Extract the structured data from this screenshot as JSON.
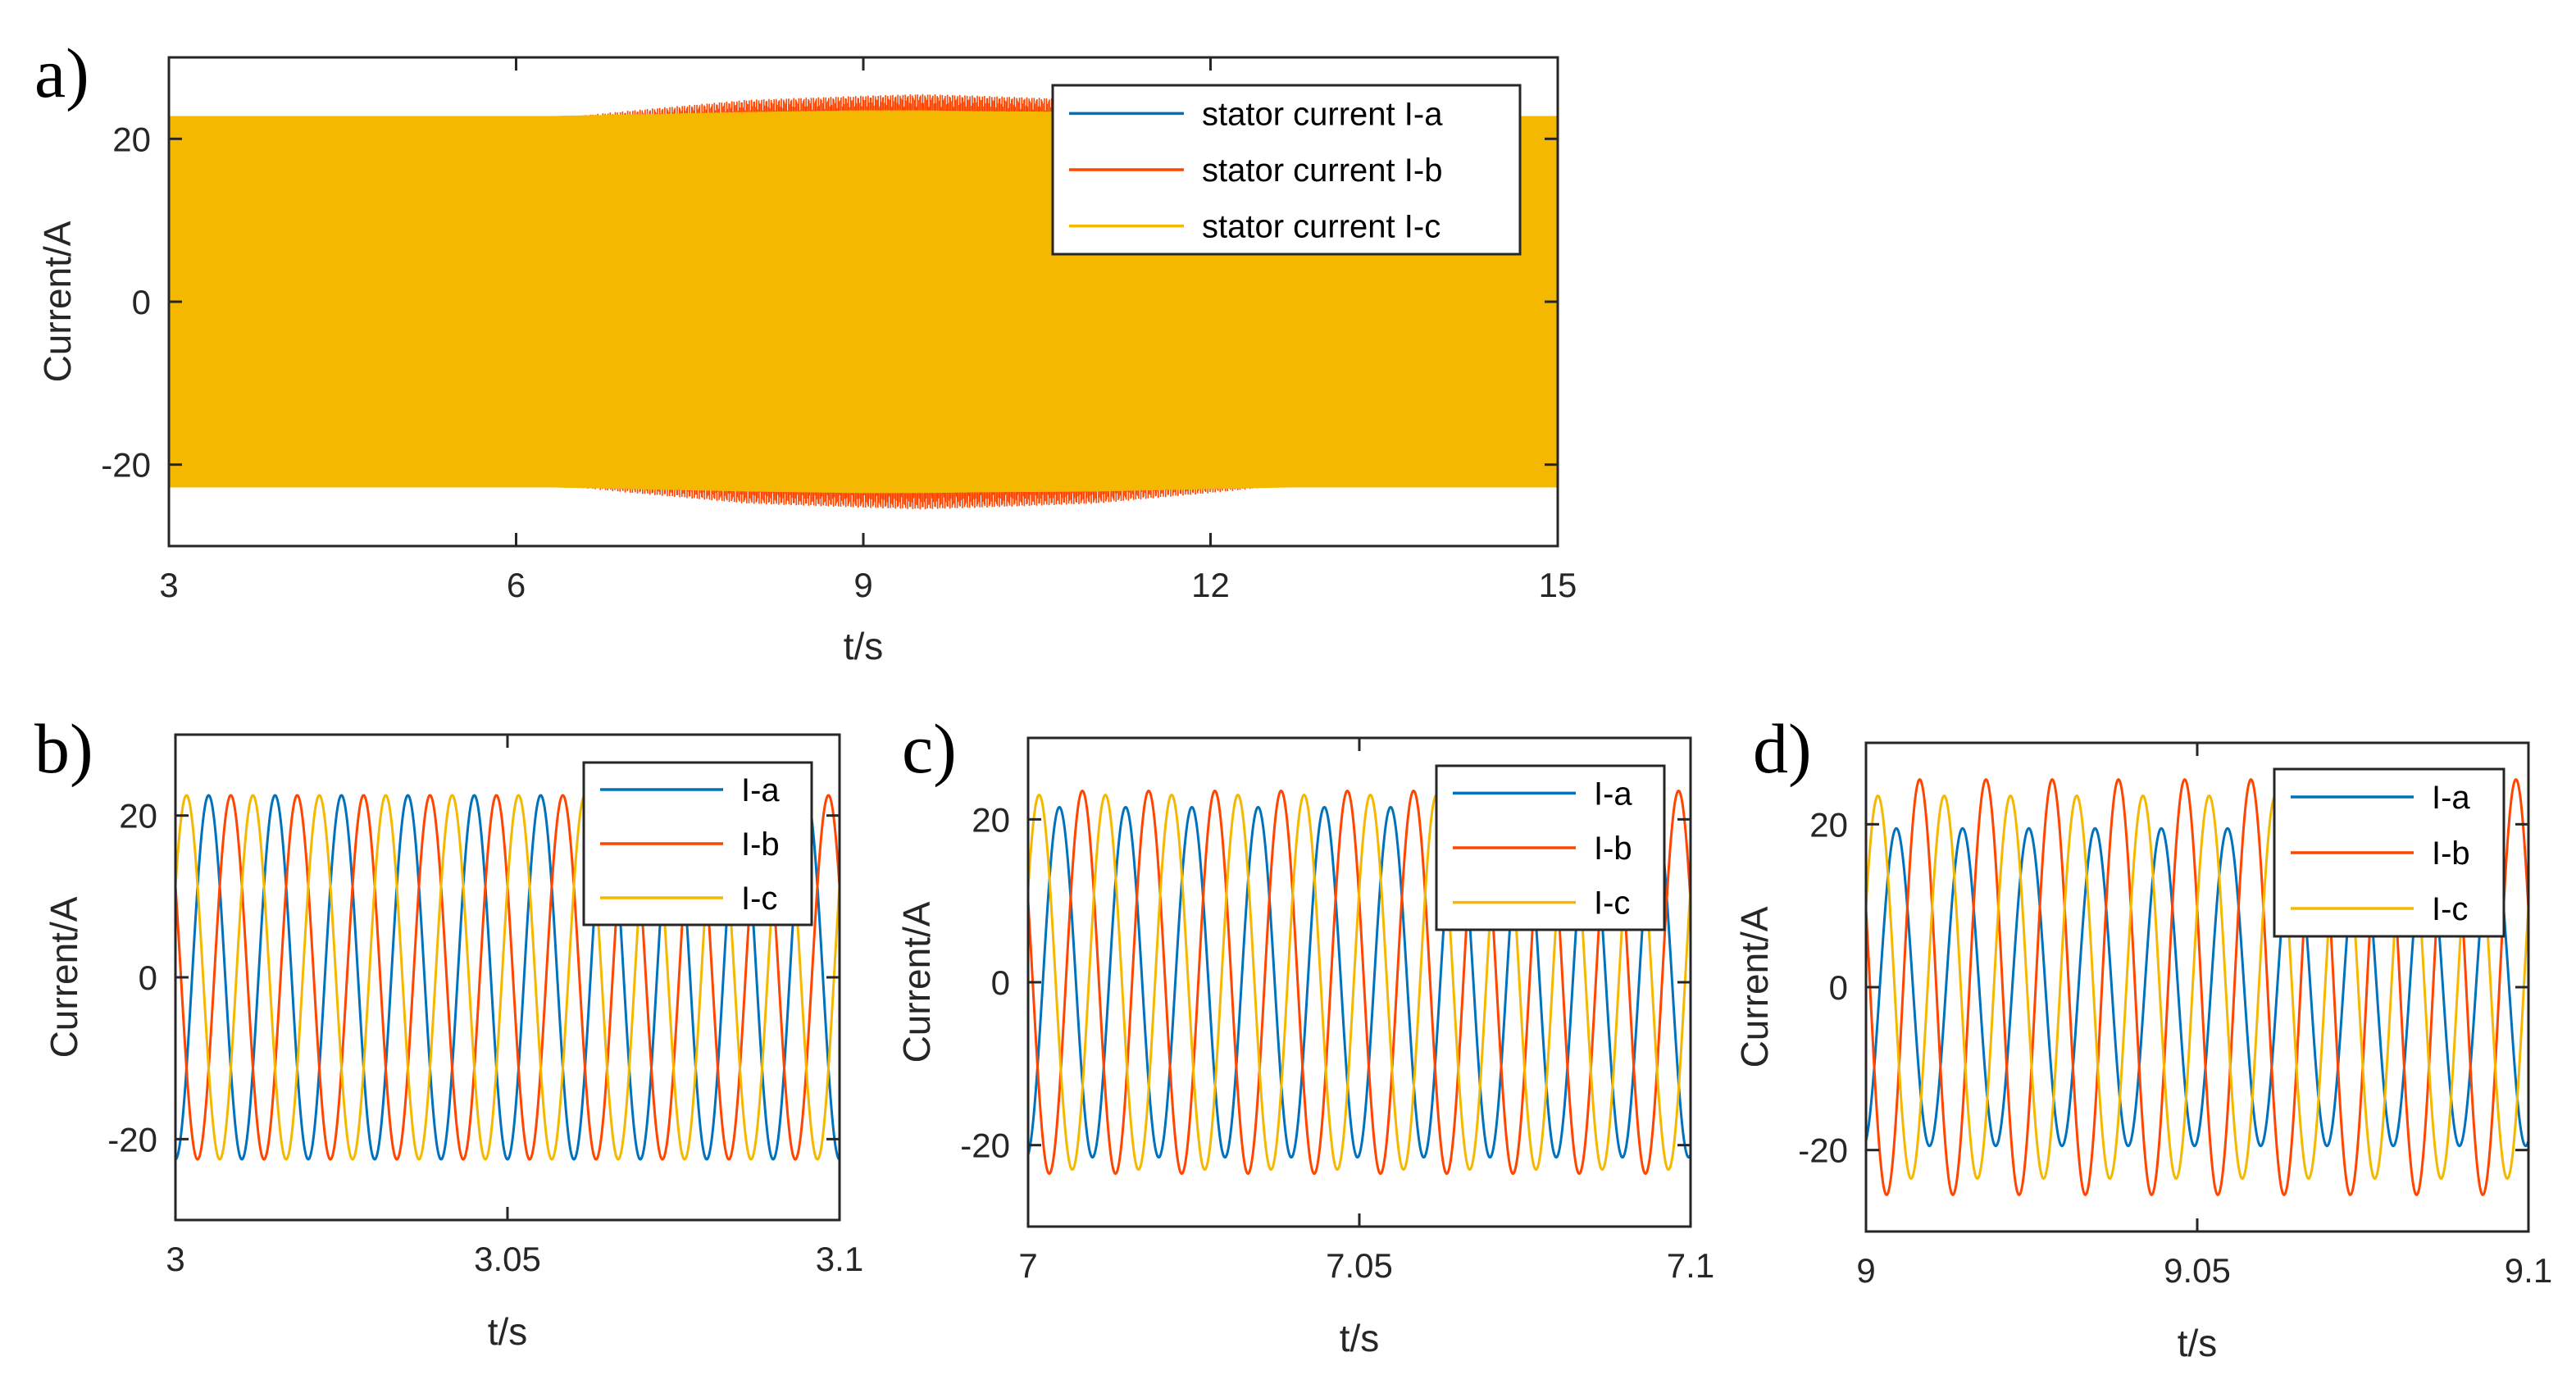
{
  "figure": {
    "panels": [
      "a)",
      "b)",
      "c)",
      "d)"
    ]
  },
  "colors": {
    "I-a": "#0072BD",
    "I-b": "#FF4500",
    "I-c": "#F5B800",
    "axes": "#262626"
  },
  "chart_data": [
    {
      "panel": "a)",
      "type": "line",
      "xlabel": "t/s",
      "ylabel": "Current/A",
      "xlim": [
        3,
        15
      ],
      "ylim": [
        -30,
        30
      ],
      "xticks": [
        3,
        6,
        9,
        12,
        15
      ],
      "xtick_labels": [
        "3",
        "6",
        "9",
        "12",
        "15"
      ],
      "yticks": [
        20,
        0,
        -20
      ],
      "ytick_labels": [
        "20",
        "0",
        "-20"
      ],
      "legend": [
        "stator current I-a",
        "stator current I-b",
        "stator current I-c"
      ],
      "legend_position": "top-right",
      "frequency_hz": 100,
      "envelope_times": [
        3,
        6,
        6.3,
        7,
        8,
        9,
        9.5,
        10,
        11,
        12,
        12.7,
        15
      ],
      "series": [
        {
          "name": "stator current I-a",
          "amplitudes": [
            22.5,
            22.5,
            22.5,
            21.5,
            20.5,
            20.0,
            19.5,
            20.0,
            20.5,
            21.5,
            22.5,
            22.5
          ]
        },
        {
          "name": "stator current I-b",
          "amplitudes": [
            22.5,
            22.5,
            22.5,
            23.5,
            24.8,
            25.3,
            25.5,
            25.3,
            24.8,
            23.5,
            22.5,
            22.5
          ]
        },
        {
          "name": "stator current I-c",
          "amplitudes": [
            22.8,
            22.8,
            22.8,
            23.0,
            23.3,
            23.5,
            23.5,
            23.4,
            23.3,
            23.0,
            22.8,
            22.8
          ]
        }
      ]
    },
    {
      "panel": "b)",
      "type": "line",
      "xlabel": "t/s",
      "ylabel": "Current/A",
      "xlim": [
        3,
        3.1
      ],
      "ylim": [
        -30,
        30
      ],
      "xticks": [
        3,
        3.05,
        3.1
      ],
      "xtick_labels": [
        "3",
        "3.05",
        "3.1"
      ],
      "yticks": [
        20,
        0,
        -20
      ],
      "ytick_labels": [
        "20",
        "0",
        "-20"
      ],
      "legend": [
        "I-a",
        "I-b",
        "I-c"
      ],
      "legend_position": "top-right",
      "frequency_hz": 100,
      "series": [
        {
          "name": "I-a",
          "amplitude": 22.5,
          "phase_deg": -90
        },
        {
          "name": "I-b",
          "amplitude": 22.5,
          "phase_deg": 150
        },
        {
          "name": "I-c",
          "amplitude": 22.5,
          "phase_deg": 30
        }
      ]
    },
    {
      "panel": "c)",
      "type": "line",
      "xlabel": "t/s",
      "ylabel": "Current/A",
      "xlim": [
        7,
        7.1
      ],
      "ylim": [
        -30,
        30
      ],
      "xticks": [
        7,
        7.05,
        7.1
      ],
      "xtick_labels": [
        "7",
        "7.05",
        "7.1"
      ],
      "yticks": [
        20,
        0,
        -20
      ],
      "ytick_labels": [
        "20",
        "0",
        "-20"
      ],
      "legend": [
        "I-a",
        "I-b",
        "I-c"
      ],
      "legend_position": "top-right",
      "frequency_hz": 100,
      "series": [
        {
          "name": "I-a",
          "amplitude": 21.5,
          "phase_deg": -80
        },
        {
          "name": "I-b",
          "amplitude": 23.5,
          "phase_deg": 155
        },
        {
          "name": "I-c",
          "amplitude": 23.0,
          "phase_deg": 30
        }
      ]
    },
    {
      "panel": "d)",
      "type": "line",
      "xlabel": "t/s",
      "ylabel": "Current/A",
      "xlim": [
        9,
        9.1
      ],
      "ylim": [
        -30,
        30
      ],
      "xticks": [
        9,
        9.05,
        9.1
      ],
      "xtick_labels": [
        "9",
        "9.05",
        "9.1"
      ],
      "yticks": [
        20,
        0,
        -20
      ],
      "ytick_labels": [
        "20",
        "0",
        "-20"
      ],
      "legend": [
        "I-a",
        "I-b",
        "I-c"
      ],
      "legend_position": "top-right",
      "frequency_hz": 100,
      "series": [
        {
          "name": "I-a",
          "amplitude": 19.5,
          "phase_deg": -75
        },
        {
          "name": "I-b",
          "amplitude": 25.5,
          "phase_deg": 158
        },
        {
          "name": "I-c",
          "amplitude": 23.5,
          "phase_deg": 25
        }
      ]
    }
  ]
}
